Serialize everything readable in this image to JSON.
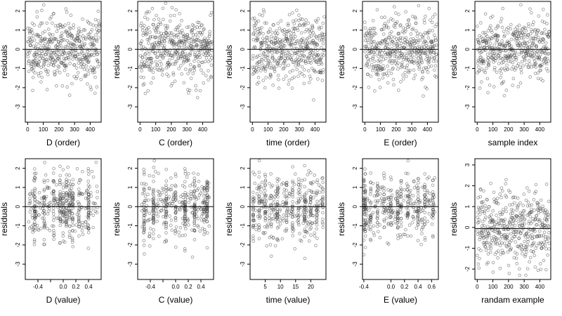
{
  "chart_data": [
    {
      "type": "scatter",
      "xlabel": "D (order)",
      "ylabel": "residuals",
      "xlim": [
        -15,
        470
      ],
      "ylim": [
        -3.8,
        2.5
      ],
      "xticks": [
        0,
        100,
        200,
        300,
        400
      ],
      "xtick_labels": [
        "0",
        "100",
        "200",
        "300",
        "400"
      ],
      "yticks": [
        -3,
        -2,
        -1,
        0,
        1,
        2
      ],
      "ytick_labels": [
        "-3",
        "-2",
        "-1",
        "0",
        "1",
        "2"
      ],
      "reference_line_y": 0,
      "grid": false,
      "points": {
        "n": 460,
        "x_range": [
          0,
          460
        ],
        "x_kind": "index",
        "y_center": 0,
        "y_sd": 0.85,
        "y_min": -3.6,
        "y_max": 2.4,
        "seed": 11
      }
    },
    {
      "type": "scatter",
      "xlabel": "C (order)",
      "ylabel": "residuals",
      "xlim": [
        -15,
        470
      ],
      "ylim": [
        -3.8,
        2.5
      ],
      "xticks": [
        0,
        100,
        200,
        300,
        400
      ],
      "xtick_labels": [
        "0",
        "100",
        "200",
        "300",
        "400"
      ],
      "yticks": [
        -3,
        -2,
        -1,
        0,
        1,
        2
      ],
      "ytick_labels": [
        "-3",
        "-2",
        "-1",
        "0",
        "1",
        "2"
      ],
      "reference_line_y": 0,
      "grid": false,
      "points": {
        "n": 460,
        "x_range": [
          0,
          460
        ],
        "x_kind": "index",
        "y_center": 0,
        "y_sd": 0.85,
        "y_min": -3.6,
        "y_max": 2.4,
        "seed": 23
      }
    },
    {
      "type": "scatter",
      "xlabel": "time (order)",
      "ylabel": "residuals",
      "xlim": [
        -15,
        470
      ],
      "ylim": [
        -3.8,
        2.5
      ],
      "xticks": [
        0,
        100,
        200,
        300,
        400
      ],
      "xtick_labels": [
        "0",
        "100",
        "200",
        "300",
        "400"
      ],
      "yticks": [
        -3,
        -2,
        -1,
        0,
        1,
        2
      ],
      "ytick_labels": [
        "-3",
        "-2",
        "-1",
        "0",
        "1",
        "2"
      ],
      "reference_line_y": 0,
      "grid": false,
      "points": {
        "n": 460,
        "x_range": [
          0,
          460
        ],
        "x_kind": "index",
        "y_center": 0,
        "y_sd": 0.85,
        "y_min": -3.6,
        "y_max": 2.4,
        "seed": 37
      }
    },
    {
      "type": "scatter",
      "xlabel": "E (order)",
      "ylabel": "residuals",
      "xlim": [
        -15,
        470
      ],
      "ylim": [
        -3.8,
        2.5
      ],
      "xticks": [
        0,
        100,
        200,
        300,
        400
      ],
      "xtick_labels": [
        "0",
        "100",
        "200",
        "300",
        "400"
      ],
      "yticks": [
        -3,
        -2,
        -1,
        0,
        1,
        2
      ],
      "ytick_labels": [
        "-3",
        "-2",
        "-1",
        "0",
        "1",
        "2"
      ],
      "reference_line_y": 0,
      "grid": false,
      "points": {
        "n": 460,
        "x_range": [
          0,
          460
        ],
        "x_kind": "index",
        "y_center": 0,
        "y_sd": 0.85,
        "y_min": -3.6,
        "y_max": 2.4,
        "seed": 41
      }
    },
    {
      "type": "scatter",
      "xlabel": "sample index",
      "ylabel": "residuals",
      "xlim": [
        -15,
        470
      ],
      "ylim": [
        -3.8,
        2.5
      ],
      "xticks": [
        0,
        100,
        200,
        300,
        400
      ],
      "xtick_labels": [
        "0",
        "100",
        "200",
        "300",
        "400"
      ],
      "yticks": [
        -3,
        -2,
        -1,
        0,
        1,
        2
      ],
      "ytick_labels": [
        "-3",
        "-2",
        "-1",
        "0",
        "1",
        "2"
      ],
      "reference_line_y": 0,
      "grid": false,
      "points": {
        "n": 460,
        "x_range": [
          0,
          460
        ],
        "x_kind": "index",
        "y_center": 0,
        "y_sd": 0.85,
        "y_min": -3.6,
        "y_max": 2.4,
        "seed": 53
      }
    },
    {
      "type": "scatter",
      "xlabel": "D (value)",
      "ylabel": "residuals",
      "xlim": [
        -0.6,
        0.6
      ],
      "ylim": [
        -3.8,
        2.5
      ],
      "xticks": [
        -0.4,
        -0.2,
        0.0,
        0.2,
        0.4
      ],
      "xtick_labels": [
        "-0.4",
        "",
        "0.0",
        "0.2",
        "0.4"
      ],
      "yticks": [
        -3,
        -2,
        -1,
        0,
        1,
        2
      ],
      "ytick_labels": [
        "-3",
        "-2",
        "-1",
        "0",
        "1",
        "2"
      ],
      "reference_line_y": 0,
      "grid": false,
      "points": {
        "n": 460,
        "x_range": [
          -0.55,
          0.55
        ],
        "x_kind": "clustered",
        "x_clusters": [
          -0.45,
          -0.3,
          -0.15,
          -0.05,
          0.0,
          0.05,
          0.1,
          0.15,
          0.25,
          0.4
        ],
        "y_center": 0,
        "y_sd": 0.85,
        "y_min": -3.6,
        "y_max": 2.4,
        "seed": 67
      }
    },
    {
      "type": "scatter",
      "xlabel": "C (value)",
      "ylabel": "residuals",
      "xlim": [
        -0.6,
        0.6
      ],
      "ylim": [
        -3.8,
        2.5
      ],
      "xticks": [
        -0.4,
        -0.2,
        0.0,
        0.2,
        0.4
      ],
      "xtick_labels": [
        "-0.4",
        "",
        "0.0",
        "0.2",
        "0.4"
      ],
      "yticks": [
        -3,
        -2,
        -1,
        0,
        1,
        2
      ],
      "ytick_labels": [
        "-3",
        "-2",
        "-1",
        "0",
        "1",
        "2"
      ],
      "reference_line_y": 0,
      "grid": false,
      "points": {
        "n": 460,
        "x_range": [
          -0.55,
          0.55
        ],
        "x_kind": "clustered",
        "x_clusters": [
          -0.5,
          -0.35,
          -0.15,
          0.0,
          0.15,
          0.3,
          0.45,
          0.5
        ],
        "y_center": 0,
        "y_sd": 0.85,
        "y_min": -3.6,
        "y_max": 2.4,
        "seed": 71
      }
    },
    {
      "type": "scatter",
      "xlabel": "time (value)",
      "ylabel": "residuals",
      "xlim": [
        0,
        25
      ],
      "ylim": [
        -3.8,
        2.5
      ],
      "xticks": [
        5,
        10,
        15,
        20
      ],
      "xtick_labels": [
        "5",
        "10",
        "15",
        "20"
      ],
      "yticks": [
        -3,
        -2,
        -1,
        0,
        1,
        2
      ],
      "ytick_labels": [
        "-3",
        "-2",
        "-1",
        "0",
        "1",
        "2"
      ],
      "reference_line_y": 0,
      "grid": false,
      "points": {
        "n": 460,
        "x_range": [
          1,
          24
        ],
        "x_kind": "clustered",
        "x_clusters": [
          1,
          3,
          5,
          7,
          9,
          12,
          14,
          16,
          18,
          20,
          22,
          24
        ],
        "y_center": 0,
        "y_sd": 0.85,
        "y_min": -3.6,
        "y_max": 2.4,
        "seed": 83
      }
    },
    {
      "type": "scatter",
      "xlabel": "E (value)",
      "ylabel": "residuals",
      "xlim": [
        -0.42,
        0.7
      ],
      "ylim": [
        -3.8,
        2.5
      ],
      "xticks": [
        -0.4,
        0.0,
        0.2,
        0.4,
        0.6
      ],
      "xtick_labels": [
        "-0.4",
        "0.0",
        "0.2",
        "0.4",
        "0.6"
      ],
      "yticks": [
        -3,
        -2,
        -1,
        0,
        1,
        2
      ],
      "ytick_labels": [
        "-3",
        "-2",
        "-1",
        "0",
        "1",
        "2"
      ],
      "reference_line_y": 0,
      "grid": false,
      "points": {
        "n": 460,
        "x_range": [
          -0.4,
          0.65
        ],
        "x_kind": "clustered",
        "x_clusters": [
          -0.4,
          -0.38,
          -0.3,
          -0.2,
          -0.1,
          0.0,
          0.1,
          0.15,
          0.25,
          0.4,
          0.5,
          0.62
        ],
        "y_center": 0,
        "y_sd": 0.85,
        "y_min": -3.6,
        "y_max": 2.4,
        "seed": 97
      }
    },
    {
      "type": "scatter",
      "xlabel": "randam example",
      "ylabel": "residuals",
      "xlim": [
        -15,
        470
      ],
      "ylim": [
        -2.5,
        3.3
      ],
      "xticks": [
        0,
        100,
        200,
        300,
        400
      ],
      "xtick_labels": [
        "0",
        "100",
        "200",
        "300",
        "400"
      ],
      "yticks": [
        -2,
        -1,
        0,
        1,
        2,
        3
      ],
      "ytick_labels": [
        "-2",
        "-1",
        "0",
        "1",
        "2",
        "3"
      ],
      "reference_line_y": -0.05,
      "grid": false,
      "points": {
        "n": 460,
        "x_range": [
          0,
          460
        ],
        "x_kind": "index",
        "y_center": 0,
        "y_sd": 0.9,
        "y_min": -2.3,
        "y_max": 2.95,
        "seed": 101
      }
    }
  ]
}
